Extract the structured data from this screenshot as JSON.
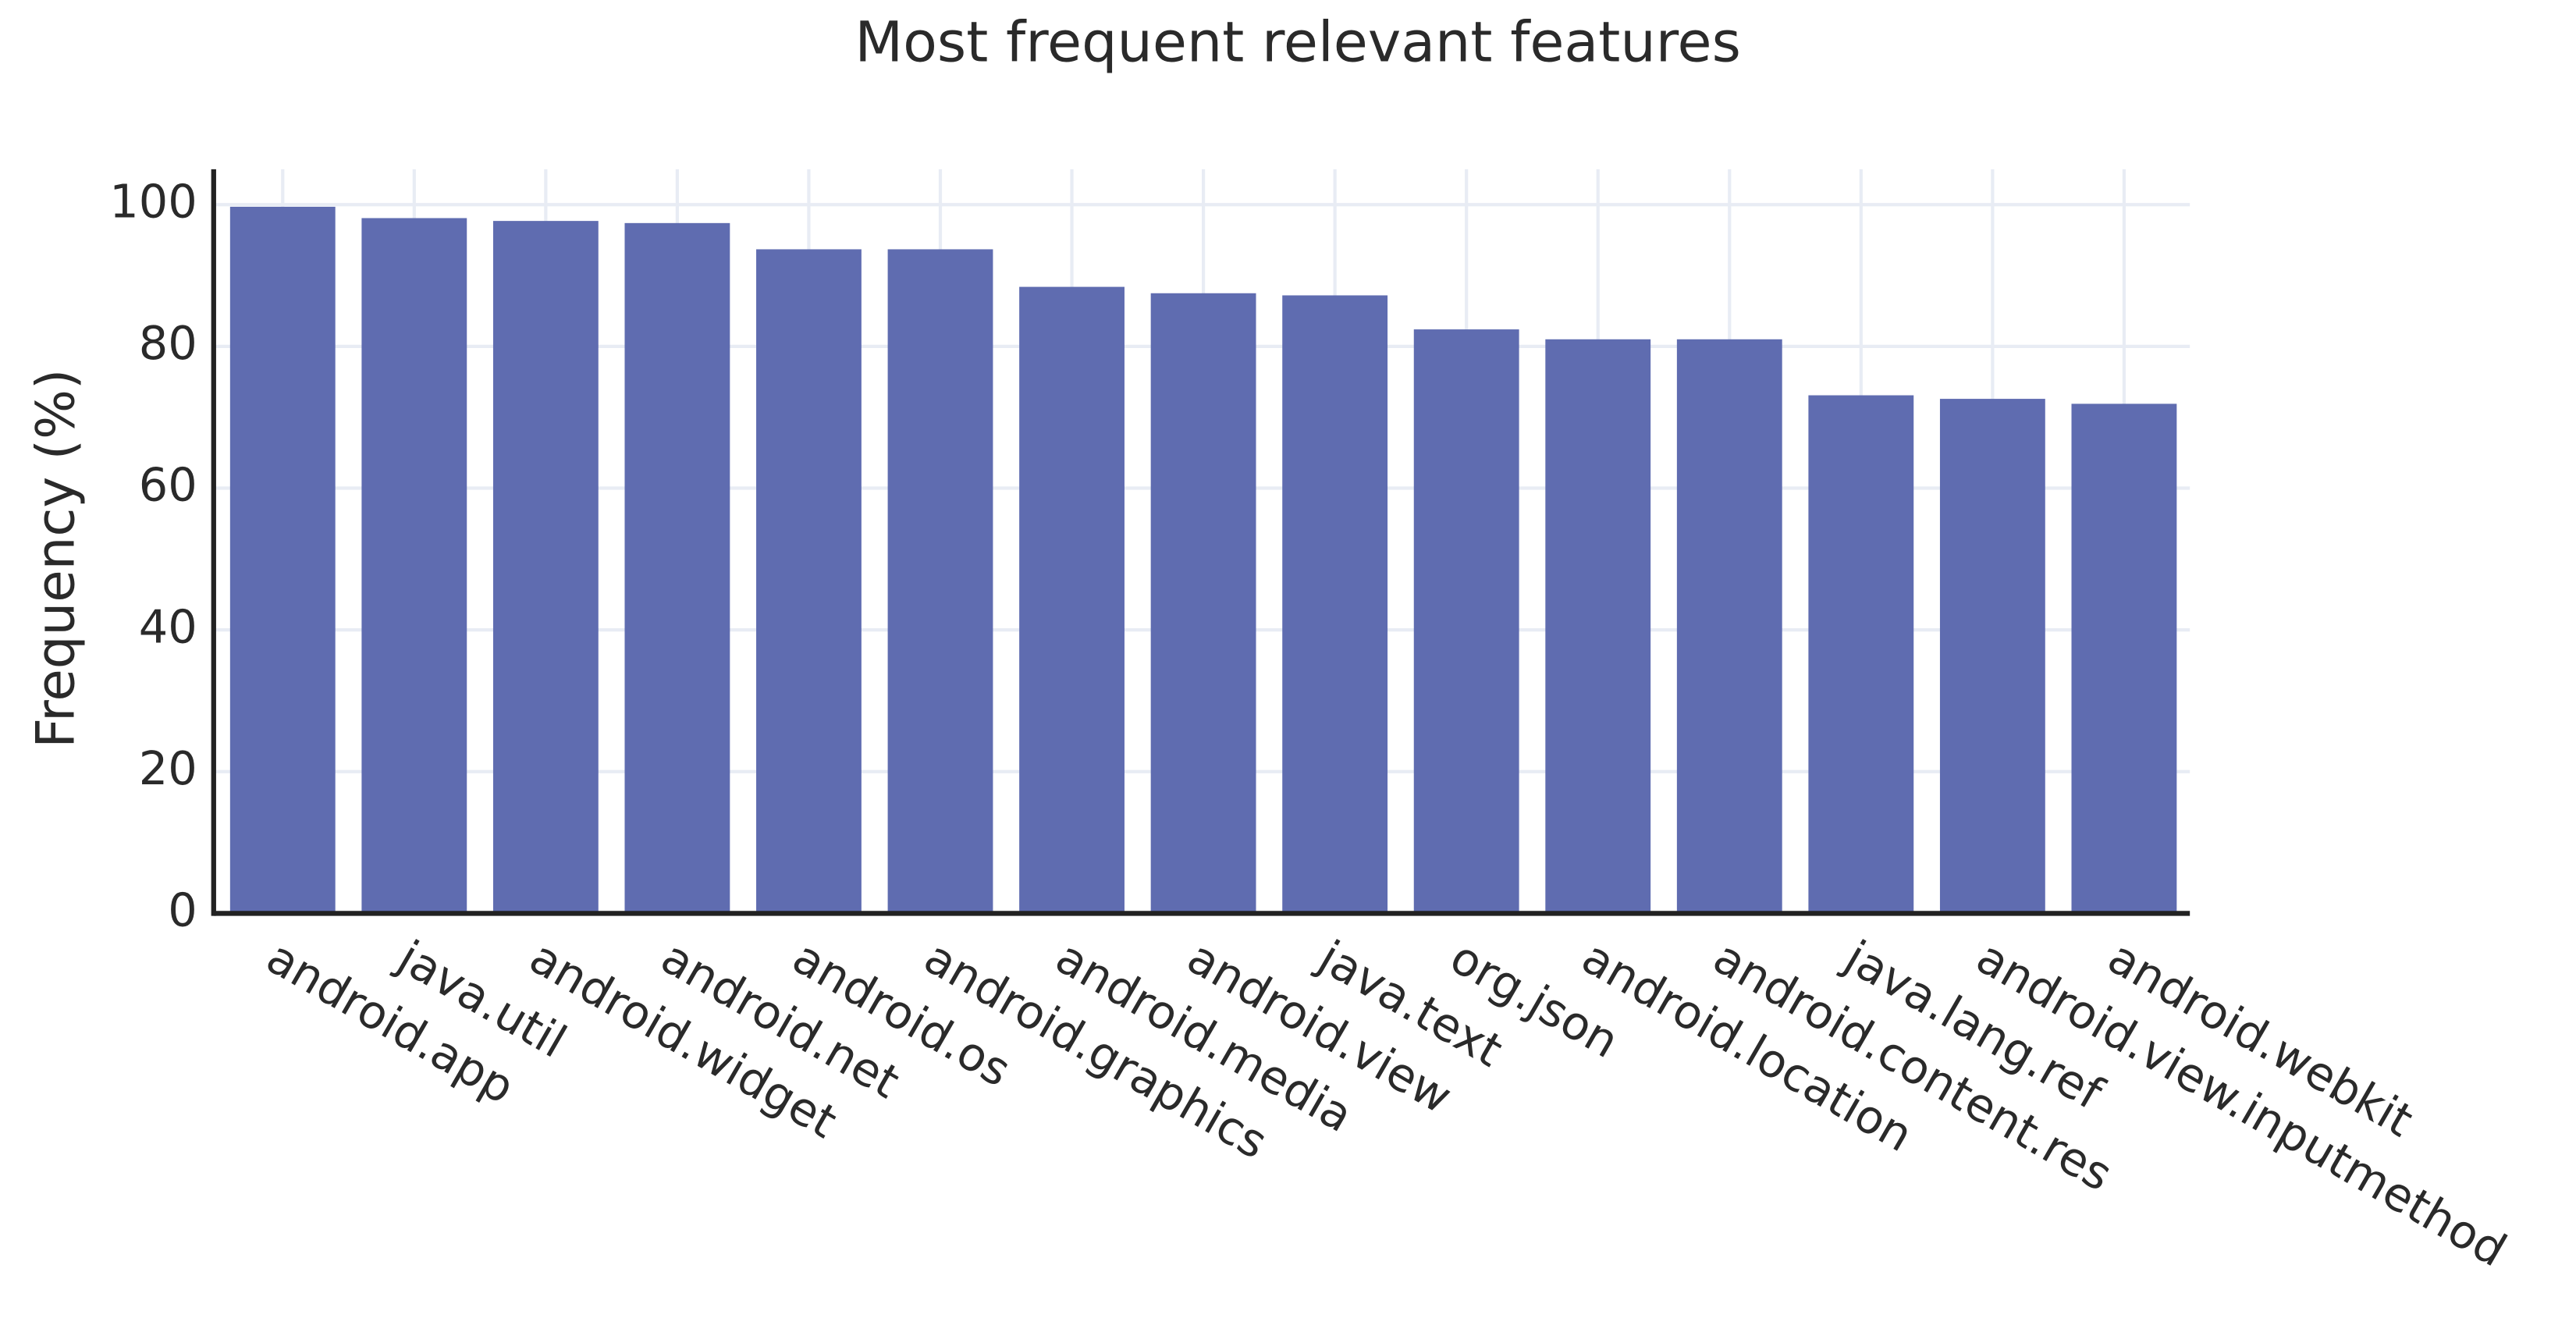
{
  "chart_data": {
    "type": "bar",
    "title": "Most frequent relevant features",
    "y_label": "Frequency (%)",
    "categories": [
      "android.app",
      "java.util",
      "android.widget",
      "android.net",
      "android.os",
      "android.graphics",
      "android.media",
      "android.view",
      "java.text",
      "org.json",
      "android.location",
      "android.content.res",
      "java.lang.ref",
      "android.view.inputmethod",
      "android.webkit"
    ],
    "values": [
      99.7,
      98.1,
      97.7,
      97.4,
      93.7,
      93.7,
      88.4,
      87.5,
      87.2,
      82.4,
      81.0,
      81.0,
      73.1,
      72.6,
      71.9
    ],
    "color": "#5f6cb0",
    "ylim": [
      0,
      105
    ],
    "yticks": [
      0,
      20,
      40,
      60,
      80,
      100
    ],
    "grid": true
  }
}
